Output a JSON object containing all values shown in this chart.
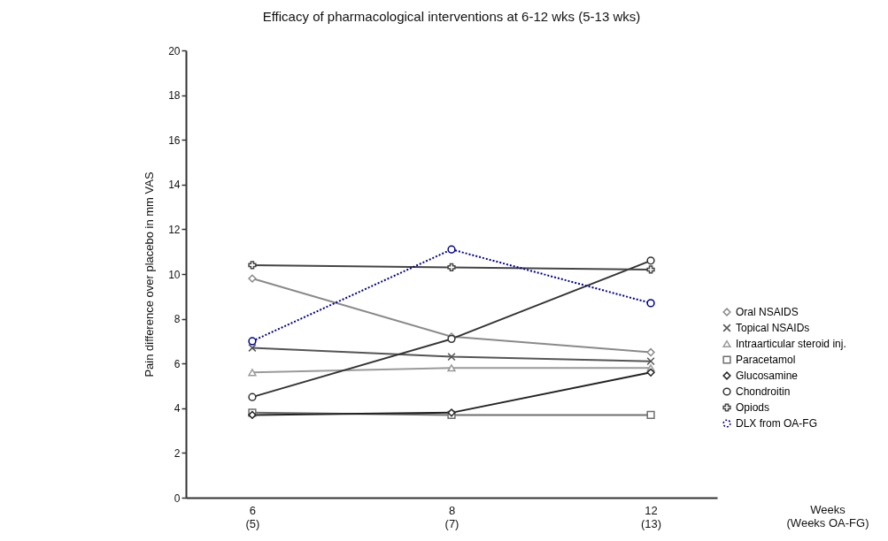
{
  "chart_data": {
    "type": "line",
    "title": "Efficacy of pharmacological interventions at 6-12 wks (5-13 wks)",
    "annotations": [
      "Weeks\n(Weeks OA-FG)"
    ],
    "ylabel": "Pain difference over placebo in mm VAS",
    "categories": [
      "6\n(5)",
      "8\n(7)",
      "12\n(13)"
    ],
    "ylim": [
      0,
      20
    ],
    "yticks": [
      0,
      2,
      4,
      6,
      8,
      10,
      12,
      14,
      16,
      18,
      20
    ],
    "grid": false,
    "legend": "right",
    "series": [
      {
        "name": "Oral NSAIDS",
        "color": "#8a8a8a",
        "marker": "diamond",
        "line_style": "solid",
        "values": [
          9.8,
          7.2,
          6.5
        ]
      },
      {
        "name": "Topical NSAIDs",
        "color": "#555555",
        "marker": "x",
        "line_style": "solid",
        "values": [
          6.7,
          6.3,
          6.1
        ]
      },
      {
        "name": "Intraarticular steroid inj.",
        "color": "#9a9a9a",
        "marker": "triangle",
        "line_style": "solid",
        "values": [
          5.6,
          5.8,
          5.8
        ]
      },
      {
        "name": "Paracetamol",
        "color": "#6e6e6e",
        "marker": "square",
        "line_style": "solid",
        "values": [
          3.8,
          3.7,
          3.7
        ]
      },
      {
        "name": "Glucosamine",
        "color": "#222222",
        "marker": "diamond",
        "line_style": "solid",
        "values": [
          3.7,
          3.8,
          5.6
        ]
      },
      {
        "name": "Chondroitin",
        "color": "#333333",
        "marker": "circle",
        "line_style": "solid",
        "values": [
          4.5,
          7.1,
          10.6
        ]
      },
      {
        "name": "Opiods",
        "color": "#444444",
        "marker": "cross",
        "line_style": "solid",
        "values": [
          10.4,
          10.3,
          10.2
        ]
      },
      {
        "name": "DLX from OA-FG",
        "color": "#00008b",
        "marker": "circle",
        "line_style": "dotted",
        "values": [
          7.0,
          11.1,
          8.7
        ]
      }
    ]
  }
}
